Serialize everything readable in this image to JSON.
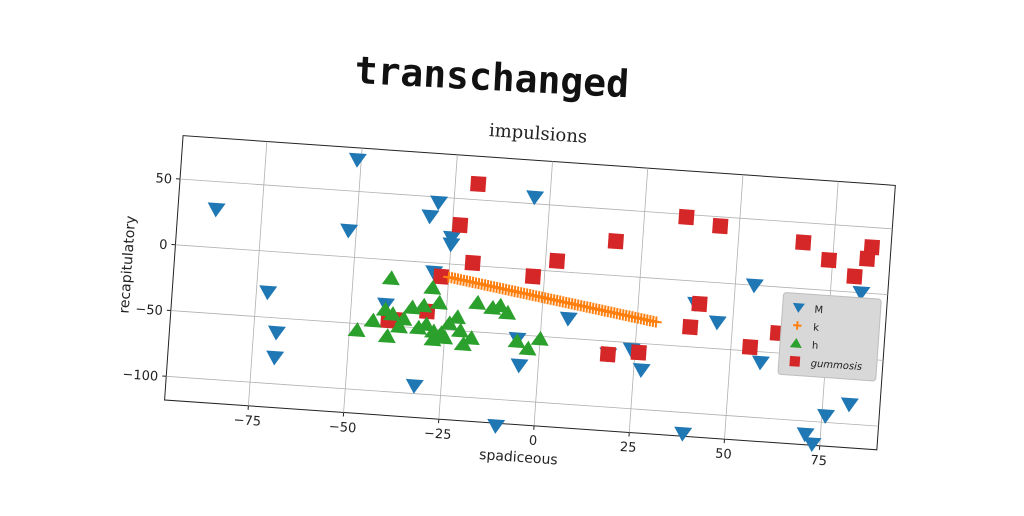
{
  "chart_data": {
    "type": "scatter",
    "title": "transchanged",
    "subtitle": "impulsions",
    "xlabel": "spadiceous",
    "ylabel": "recapitulatory",
    "xlim": [
      -97,
      90
    ],
    "ylim": [
      -118,
      83
    ],
    "xticks": [
      -75,
      -50,
      -25,
      0,
      25,
      50,
      75
    ],
    "yticks": [
      -100,
      -50,
      0,
      50
    ],
    "grid": true,
    "legend_position": "right",
    "series": [
      {
        "name": "M",
        "marker": "triangle-down",
        "color": "#1f77b4",
        "points": [
          [
            -87,
            29
          ],
          [
            -72,
            -31
          ],
          [
            -69,
            -61
          ],
          [
            -69,
            -80
          ],
          [
            -51,
            74
          ],
          [
            -52,
            20
          ],
          [
            -32,
            -94
          ],
          [
            -29,
            46
          ],
          [
            -31,
            35
          ],
          [
            -25,
            15
          ],
          [
            -25,
            20
          ],
          [
            -29,
            -7
          ],
          [
            -41,
            -34
          ],
          [
            -10,
            -120
          ],
          [
            -4,
            55
          ],
          [
            -6,
            -53
          ],
          [
            -5,
            -73
          ],
          [
            7,
            -35
          ],
          [
            18,
            -60
          ],
          [
            24,
            -55
          ],
          [
            27,
            -70
          ],
          [
            39,
            -116
          ],
          [
            40,
            -17
          ],
          [
            46,
            -30
          ],
          [
            55,
            0
          ],
          [
            58,
            -58
          ],
          [
            71,
            -110
          ],
          [
            73,
            -117
          ],
          [
            76,
            -95
          ],
          [
            82,
            -85
          ],
          [
            83,
            0
          ]
        ]
      },
      {
        "name": "k",
        "marker": "plus",
        "color": "#ff7f0e",
        "segment": {
          "from": [
            -25,
            -10
          ],
          "to": [
            30,
            -33
          ],
          "count": 70
        }
      },
      {
        "name": "h",
        "marker": "triangle-up",
        "color": "#2ca02c",
        "points": [
          [
            -48,
            -55
          ],
          [
            -44,
            -47
          ],
          [
            -41,
            -38
          ],
          [
            -39,
            -41
          ],
          [
            -40,
            -58
          ],
          [
            -40,
            -14
          ],
          [
            -37,
            -50
          ],
          [
            -36,
            -44
          ],
          [
            -32,
            -50
          ],
          [
            -31,
            -33
          ],
          [
            -30,
            -47
          ],
          [
            -28,
            -52
          ],
          [
            -28,
            -58
          ],
          [
            -26,
            -53
          ],
          [
            -25,
            -56
          ],
          [
            -24,
            -45
          ],
          [
            -22,
            -40
          ],
          [
            -21,
            -50
          ],
          [
            -20,
            -60
          ],
          [
            -18,
            -55
          ],
          [
            -17,
            -28
          ],
          [
            -13,
            -31
          ],
          [
            -11,
            -29
          ],
          [
            -9,
            -34
          ],
          [
            -6,
            -55
          ],
          [
            -3,
            -60
          ],
          [
            0,
            -52
          ],
          [
            -29,
            -19
          ],
          [
            -27,
            -30
          ],
          [
            -34,
            -35
          ]
        ]
      },
      {
        "name": "gummosis",
        "marker": "square",
        "color": "#d62728",
        "points": [
          [
            -19,
            62
          ],
          [
            -23,
            30
          ],
          [
            -19,
            2
          ],
          [
            -27,
            -10
          ],
          [
            -30,
            -37
          ],
          [
            -38,
            -45
          ],
          [
            -40,
            -46
          ],
          [
            -3,
            -5
          ],
          [
            3,
            8
          ],
          [
            18,
            26
          ],
          [
            18,
            -60
          ],
          [
            26,
            -57
          ],
          [
            36,
            48
          ],
          [
            45,
            43
          ],
          [
            39,
            -35
          ],
          [
            41,
            -17
          ],
          [
            55,
            -47
          ],
          [
            62,
            -35
          ],
          [
            67,
            35
          ],
          [
            74,
            23
          ],
          [
            81,
            12
          ],
          [
            85,
            35
          ],
          [
            84,
            26
          ]
        ]
      }
    ]
  }
}
